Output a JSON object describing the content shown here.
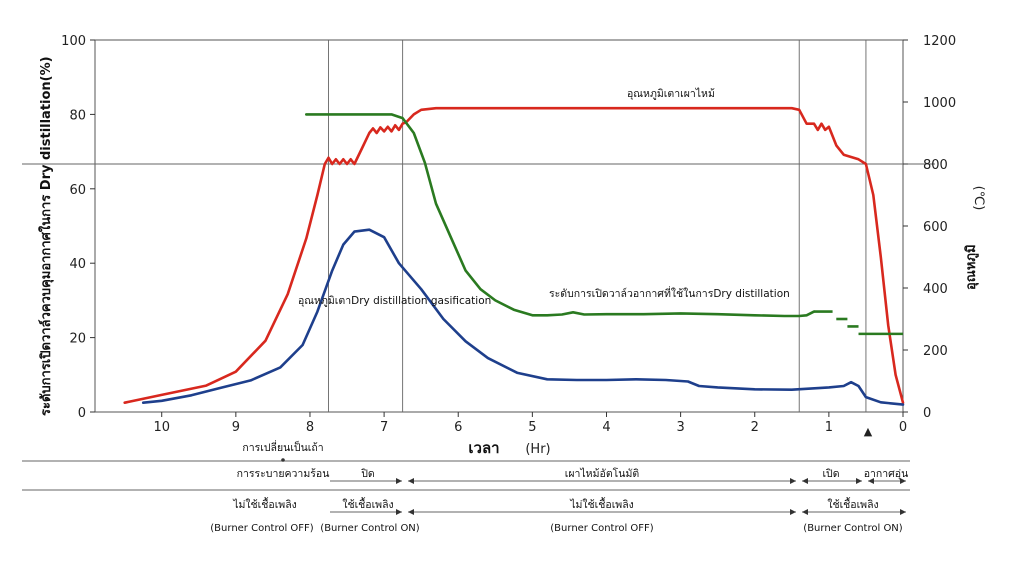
{
  "chart_data": {
    "type": "line",
    "xlabel": "เวลา",
    "xunit": "(Hr)",
    "ylabel_left": "ระดับการเปิดวาล์วควบคุมอากาศในการ Dry distillation(%)",
    "ylabel_right": "อุณหภูมิ",
    "ylabel_right_unit": "(℃)",
    "xlim": [
      10.9,
      0
    ],
    "ylim_left": [
      0,
      100
    ],
    "ylim_right": [
      0,
      1200
    ],
    "x_ticks": [
      "10",
      "9",
      "8",
      "7",
      "6",
      "5",
      "4",
      "3",
      "2",
      "1",
      "0"
    ],
    "y_left_ticks": [
      "0",
      "20",
      "40",
      "60",
      "80",
      "100"
    ],
    "y_right_ticks": [
      "0",
      "200",
      "400",
      "600",
      "800",
      "1000",
      "1200"
    ],
    "vertical_lines_hr": [
      7.75,
      6.75,
      1.4,
      0.5
    ],
    "horizontal_line_right": 800,
    "series": [
      {
        "name": "อุณหภูมิเตาเผาไหม้",
        "axis": "right",
        "color": "#d8281e",
        "points": [
          [
            10.5,
            30
          ],
          [
            10,
            55
          ],
          [
            9.4,
            85
          ],
          [
            9.0,
            130
          ],
          [
            8.6,
            230
          ],
          [
            8.3,
            380
          ],
          [
            8.05,
            560
          ],
          [
            7.9,
            700
          ],
          [
            7.8,
            800
          ],
          [
            7.75,
            820
          ],
          [
            7.7,
            800
          ],
          [
            7.65,
            815
          ],
          [
            7.6,
            800
          ],
          [
            7.55,
            815
          ],
          [
            7.5,
            800
          ],
          [
            7.45,
            815
          ],
          [
            7.4,
            800
          ],
          [
            7.3,
            850
          ],
          [
            7.2,
            900
          ],
          [
            7.15,
            915
          ],
          [
            7.1,
            900
          ],
          [
            7.05,
            918
          ],
          [
            7.0,
            905
          ],
          [
            6.95,
            920
          ],
          [
            6.9,
            905
          ],
          [
            6.85,
            925
          ],
          [
            6.8,
            910
          ],
          [
            6.75,
            930
          ],
          [
            6.7,
            935
          ],
          [
            6.6,
            960
          ],
          [
            6.5,
            975
          ],
          [
            6.3,
            980
          ],
          [
            5.0,
            980
          ],
          [
            3.0,
            980
          ],
          [
            1.5,
            980
          ],
          [
            1.4,
            975
          ],
          [
            1.3,
            930
          ],
          [
            1.2,
            930
          ],
          [
            1.15,
            910
          ],
          [
            1.1,
            930
          ],
          [
            1.05,
            910
          ],
          [
            1.0,
            920
          ],
          [
            0.9,
            860
          ],
          [
            0.8,
            830
          ],
          [
            0.6,
            815
          ],
          [
            0.5,
            800
          ],
          [
            0.4,
            700
          ],
          [
            0.3,
            500
          ],
          [
            0.2,
            280
          ],
          [
            0.1,
            120
          ],
          [
            0.0,
            30
          ]
        ]
      },
      {
        "name": "ระดับการเปิดวาล์วอากาศที่ใช้ในการDry distillation",
        "axis": "left",
        "color": "#2a7a20",
        "points": [
          [
            8.05,
            80
          ],
          [
            6.9,
            80
          ],
          [
            6.75,
            79
          ],
          [
            6.6,
            75
          ],
          [
            6.45,
            67
          ],
          [
            6.3,
            56
          ],
          [
            6.1,
            47
          ],
          [
            5.9,
            38
          ],
          [
            5.7,
            33
          ],
          [
            5.5,
            30
          ],
          [
            5.25,
            27.5
          ],
          [
            5.0,
            26
          ],
          [
            4.8,
            26
          ],
          [
            4.6,
            26.2
          ],
          [
            4.45,
            26.8
          ],
          [
            4.3,
            26.2
          ],
          [
            4.0,
            26.3
          ],
          [
            3.5,
            26.3
          ],
          [
            3.0,
            26.5
          ],
          [
            2.5,
            26.3
          ],
          [
            2.0,
            26
          ],
          [
            1.6,
            25.8
          ],
          [
            1.4,
            25.8
          ],
          [
            1.3,
            26
          ],
          [
            1.2,
            27
          ]
        ]
      },
      {
        "name": "อุณหภูมิเตาDry distillation gasification",
        "axis": "left",
        "color": "#1e3f8c",
        "points": [
          [
            10.25,
            2.5
          ],
          [
            10,
            3
          ],
          [
            9.6,
            4.5
          ],
          [
            9.2,
            6.5
          ],
          [
            8.8,
            8.5
          ],
          [
            8.4,
            12
          ],
          [
            8.1,
            18
          ],
          [
            7.9,
            27
          ],
          [
            7.7,
            38
          ],
          [
            7.55,
            45
          ],
          [
            7.4,
            48.5
          ],
          [
            7.2,
            49
          ],
          [
            7.0,
            47
          ],
          [
            6.8,
            40
          ],
          [
            6.5,
            33
          ],
          [
            6.2,
            25
          ],
          [
            5.9,
            19
          ],
          [
            5.6,
            14.5
          ],
          [
            5.2,
            10.5
          ],
          [
            4.8,
            8.8
          ],
          [
            4.4,
            8.6
          ],
          [
            4.0,
            8.6
          ],
          [
            3.6,
            8.8
          ],
          [
            3.2,
            8.6
          ],
          [
            2.9,
            8.2
          ],
          [
            2.75,
            7
          ],
          [
            2.5,
            6.6
          ],
          [
            2.0,
            6.1
          ],
          [
            1.5,
            6
          ],
          [
            1.0,
            6.6
          ],
          [
            0.8,
            7
          ],
          [
            0.7,
            8
          ],
          [
            0.6,
            7
          ],
          [
            0.5,
            4
          ],
          [
            0.3,
            2.6
          ],
          [
            0.0,
            2
          ]
        ]
      }
    ],
    "dashed_steps": [
      {
        "from": 1.2,
        "to": 0.95,
        "value": 27,
        "axis": "left"
      },
      {
        "from": 0.9,
        "to": 0.75,
        "value": 25,
        "axis": "left"
      },
      {
        "from": 0.75,
        "to": 0.6,
        "value": 23,
        "axis": "left"
      },
      {
        "from": 0.6,
        "to": 0.0,
        "value": 21,
        "axis": "left"
      }
    ],
    "annotations": {
      "red_label": "อุณหภูมิเตาเผาไหม้",
      "green_label": "ระดับการเปิดวาล์วอากาศที่ใช้ในการDry distillation",
      "blue_label": "อุณหภูมิเตาDry distillation gasification",
      "marker_symbol": "▲"
    }
  },
  "phases": {
    "row0": {
      "label": "การเปลี่ยนเป็นเถ้า"
    },
    "row1": [
      {
        "label": "การระบายความร้อน"
      },
      {
        "label": "ปิด"
      },
      {
        "label": "เผาไหม้อัตโนมัติ"
      },
      {
        "label": "เปิด"
      },
      {
        "label": "อากาศอุ่น"
      }
    ],
    "row2": [
      {
        "label": "ไม่ใช้เชื้อเพลิง",
        "sub": "(Burner Control OFF)"
      },
      {
        "label": "ใช้เชื้อเพลิง",
        "sub": "(Burner Control ON)"
      },
      {
        "label": "ไม่ใช้เชื้อเพลิง",
        "sub": "(Burner Control OFF)"
      },
      {
        "label": "ใช้เชื้อเพลิง",
        "sub": "(Burner Control ON)"
      }
    ]
  }
}
